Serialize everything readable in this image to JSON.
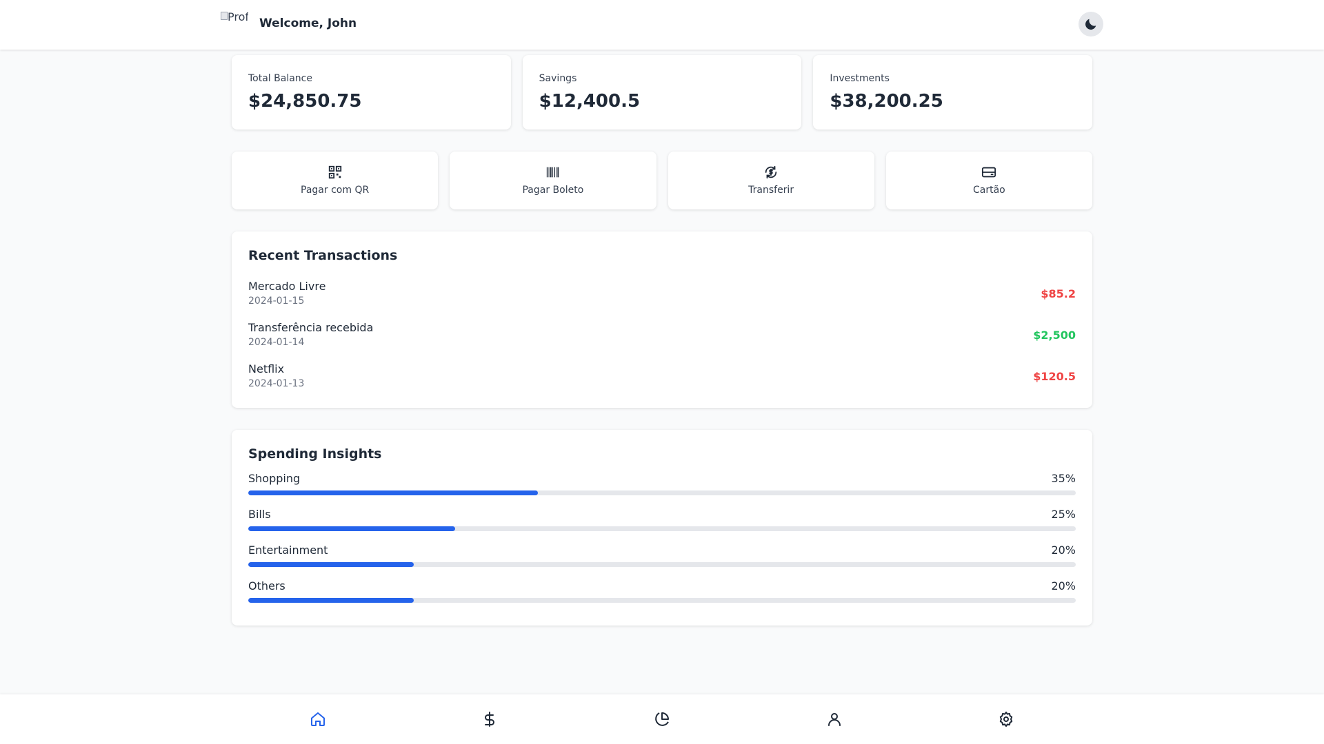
{
  "header": {
    "avatar_alt": "Profile",
    "welcome": "Welcome, John",
    "theme_icon": "moon-icon"
  },
  "balances": [
    {
      "label": "Total Balance",
      "value": "$24,850.75"
    },
    {
      "label": "Savings",
      "value": "$12,400.5"
    },
    {
      "label": "Investments",
      "value": "$38,200.25"
    }
  ],
  "actions": [
    {
      "label": "Pagar com QR",
      "icon": "qr-code-icon"
    },
    {
      "label": "Pagar Boleto",
      "icon": "barcode-icon"
    },
    {
      "label": "Transferir",
      "icon": "transfer-icon"
    },
    {
      "label": "Cartão",
      "icon": "credit-card-icon"
    }
  ],
  "transactions": {
    "title": "Recent Transactions",
    "items": [
      {
        "name": "Mercado Livre",
        "date": "2024-01-15",
        "amount": "$85.2",
        "type": "debit"
      },
      {
        "name": "Transferência recebida",
        "date": "2024-01-14",
        "amount": "$2,500",
        "type": "credit"
      },
      {
        "name": "Netflix",
        "date": "2024-01-13",
        "amount": "$120.5",
        "type": "debit"
      }
    ]
  },
  "insights": {
    "title": "Spending Insights",
    "items": [
      {
        "category": "Shopping",
        "percent_label": "35%",
        "percent": 35
      },
      {
        "category": "Bills",
        "percent_label": "25%",
        "percent": 25
      },
      {
        "category": "Entertainment",
        "percent_label": "20%",
        "percent": 20
      },
      {
        "category": "Others",
        "percent_label": "20%",
        "percent": 20
      }
    ]
  },
  "colors": {
    "debit": "#ef4444",
    "credit": "#22c55e",
    "accent": "#2563eb",
    "nav_active": "#2563eb",
    "nav_inactive": "#1f2937"
  },
  "bottom_nav": [
    {
      "icon": "home-icon",
      "active": true
    },
    {
      "icon": "dollar-icon",
      "active": false
    },
    {
      "icon": "pie-chart-icon",
      "active": false
    },
    {
      "icon": "user-icon",
      "active": false
    },
    {
      "icon": "settings-icon",
      "active": false
    }
  ]
}
